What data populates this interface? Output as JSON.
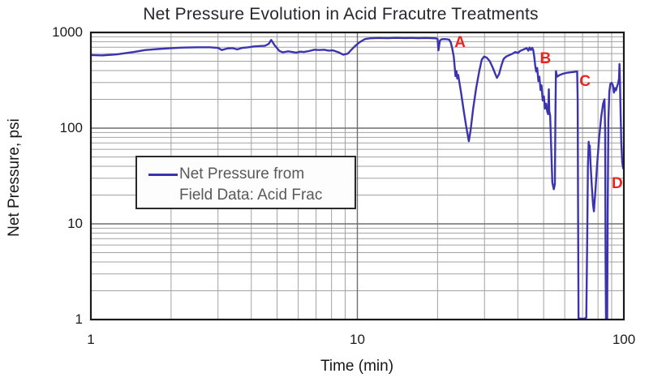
{
  "colors": {
    "line": "#3b34ae",
    "annotation": "#e8251f",
    "grid_minor": "#a2a2a2",
    "grid_major": "#6f6f6f",
    "frame": "#1a1a1a",
    "legend_text": "#595959",
    "title_text": "#26262e"
  },
  "legend": {
    "line1": "Net Pressure from",
    "line2": "Field Data: Acid Frac"
  },
  "chart_data": {
    "type": "line",
    "title": "Net Pressure Evolution in Acid Fracutre Treatments",
    "xlabel": "Time (min)",
    "ylabel": "Net Pressure, psi",
    "x_scale": "log",
    "y_scale": "log",
    "xlim": [
      1,
      100
    ],
    "ylim": [
      1,
      1000
    ],
    "x_ticks": [
      1,
      10,
      100
    ],
    "y_ticks": [
      1,
      10,
      100,
      1000
    ],
    "grid": "log major and minor gridlines, both axes",
    "legend_position": "center-left inside plot",
    "annotations": [
      {
        "label": "A",
        "t": 24.3,
        "psi": 780
      },
      {
        "label": "B",
        "t": 50.8,
        "psi": 530
      },
      {
        "label": "C",
        "t": 71.5,
        "psi": 305
      },
      {
        "label": "D",
        "t": 94.5,
        "psi": 26
      }
    ],
    "series": [
      {
        "name": "Net Pressure from Field Data: Acid Frac",
        "points": [
          [
            1.0,
            580
          ],
          [
            1.1,
            575
          ],
          [
            1.25,
            590
          ],
          [
            1.45,
            625
          ],
          [
            1.6,
            655
          ],
          [
            1.8,
            672
          ],
          [
            2.0,
            685
          ],
          [
            2.2,
            695
          ],
          [
            2.5,
            700
          ],
          [
            2.8,
            700
          ],
          [
            3.0,
            690
          ],
          [
            3.1,
            655
          ],
          [
            3.25,
            680
          ],
          [
            3.4,
            685
          ],
          [
            3.55,
            665
          ],
          [
            3.7,
            690
          ],
          [
            3.9,
            700
          ],
          [
            4.1,
            715
          ],
          [
            4.3,
            720
          ],
          [
            4.5,
            725
          ],
          [
            4.65,
            760
          ],
          [
            4.75,
            835
          ],
          [
            4.9,
            730
          ],
          [
            5.1,
            640
          ],
          [
            5.25,
            620
          ],
          [
            5.5,
            635
          ],
          [
            5.7,
            625
          ],
          [
            5.9,
            615
          ],
          [
            6.1,
            630
          ],
          [
            6.3,
            625
          ],
          [
            6.6,
            640
          ],
          [
            6.9,
            660
          ],
          [
            7.2,
            655
          ],
          [
            7.5,
            660
          ],
          [
            7.8,
            645
          ],
          [
            8.1,
            650
          ],
          [
            8.5,
            620
          ],
          [
            8.85,
            585
          ],
          [
            9.2,
            600
          ],
          [
            9.5,
            660
          ],
          [
            9.8,
            720
          ],
          [
            10.2,
            790
          ],
          [
            10.7,
            855
          ],
          [
            11.2,
            870
          ],
          [
            12,
            875
          ],
          [
            13,
            872
          ],
          [
            14,
            877
          ],
          [
            15,
            873
          ],
          [
            16,
            876
          ],
          [
            17,
            872
          ],
          [
            18,
            876
          ],
          [
            19,
            872
          ],
          [
            19.7,
            868
          ],
          [
            20.0,
            855
          ],
          [
            20.15,
            650
          ],
          [
            20.4,
            820
          ],
          [
            20.7,
            848
          ],
          [
            21.2,
            852
          ],
          [
            21.7,
            848
          ],
          [
            22.1,
            840
          ],
          [
            22.4,
            790
          ],
          [
            22.7,
            680
          ],
          [
            23.0,
            560
          ],
          [
            23.2,
            430
          ],
          [
            23.35,
            350
          ],
          [
            23.55,
            395
          ],
          [
            23.7,
            330
          ],
          [
            23.9,
            360
          ],
          [
            24.15,
            300
          ],
          [
            24.5,
            235
          ],
          [
            25.0,
            160
          ],
          [
            25.6,
            105
          ],
          [
            26.2,
            73
          ],
          [
            26.6,
            95
          ],
          [
            27.2,
            160
          ],
          [
            27.9,
            260
          ],
          [
            28.7,
            400
          ],
          [
            29.3,
            520
          ],
          [
            29.9,
            560
          ],
          [
            30.6,
            545
          ],
          [
            31.4,
            500
          ],
          [
            32.2,
            430
          ],
          [
            32.9,
            370
          ],
          [
            33.4,
            335
          ],
          [
            34.0,
            365
          ],
          [
            34.7,
            450
          ],
          [
            35.4,
            530
          ],
          [
            36.2,
            560
          ],
          [
            37.2,
            580
          ],
          [
            38.2,
            600
          ],
          [
            39.2,
            625
          ],
          [
            40.0,
            610
          ],
          [
            40.8,
            640
          ],
          [
            41.6,
            655
          ],
          [
            42.4,
            670
          ],
          [
            43.2,
            685
          ],
          [
            43.8,
            645
          ],
          [
            44.3,
            695
          ],
          [
            44.8,
            655
          ],
          [
            45.3,
            690
          ],
          [
            45.7,
            655
          ],
          [
            46.1,
            560
          ],
          [
            46.5,
            450
          ],
          [
            46.9,
            390
          ],
          [
            47.3,
            425
          ],
          [
            47.8,
            310
          ],
          [
            48.2,
            345
          ],
          [
            48.7,
            250
          ],
          [
            49.1,
            280
          ],
          [
            49.6,
            195
          ],
          [
            50.1,
            215
          ],
          [
            50.6,
            160
          ],
          [
            51.1,
            180
          ],
          [
            51.6,
            148
          ],
          [
            52.0,
            140
          ],
          [
            52.3,
            255
          ],
          [
            52.5,
            150
          ],
          [
            52.9,
            135
          ],
          [
            53.4,
            60
          ],
          [
            53.9,
            27
          ],
          [
            54.6,
            23
          ],
          [
            55.1,
            26
          ],
          [
            55.35,
            120
          ],
          [
            55.6,
            395
          ],
          [
            56.2,
            345
          ],
          [
            57.5,
            360
          ],
          [
            59,
            370
          ],
          [
            61,
            378
          ],
          [
            63,
            383
          ],
          [
            65,
            387
          ],
          [
            66.8,
            392
          ],
          [
            67.1,
            200
          ],
          [
            67.3,
            20
          ],
          [
            67.6,
            1.03
          ],
          [
            69,
            1.02
          ],
          [
            71,
            1.02
          ],
          [
            72.3,
            1.05
          ],
          [
            72.9,
            8
          ],
          [
            73.3,
            40
          ],
          [
            73.8,
            72
          ],
          [
            74.1,
            52
          ],
          [
            74.5,
            66
          ],
          [
            75.0,
            42
          ],
          [
            75.8,
            25
          ],
          [
            76.6,
            16
          ],
          [
            77.2,
            13.5
          ],
          [
            78.2,
            22
          ],
          [
            79.4,
            42
          ],
          [
            80.8,
            80
          ],
          [
            82.2,
            130
          ],
          [
            83.6,
            180
          ],
          [
            84.6,
            200
          ],
          [
            85.1,
            90
          ],
          [
            85.4,
            4
          ],
          [
            85.7,
            1.02
          ],
          [
            86.6,
            1.02
          ],
          [
            87.0,
            15
          ],
          [
            87.5,
            120
          ],
          [
            88.2,
            240
          ],
          [
            89.0,
            290
          ],
          [
            90.0,
            298
          ],
          [
            91.0,
            280
          ],
          [
            91.8,
            235
          ],
          [
            92.6,
            262
          ],
          [
            93.4,
            248
          ],
          [
            94.3,
            272
          ],
          [
            95.2,
            295
          ],
          [
            95.9,
            330
          ],
          [
            96.3,
            468
          ],
          [
            96.7,
            310
          ],
          [
            97.2,
            150
          ],
          [
            97.8,
            70
          ],
          [
            98.6,
            44
          ],
          [
            99.4,
            38
          ],
          [
            100,
            44
          ]
        ]
      }
    ]
  }
}
